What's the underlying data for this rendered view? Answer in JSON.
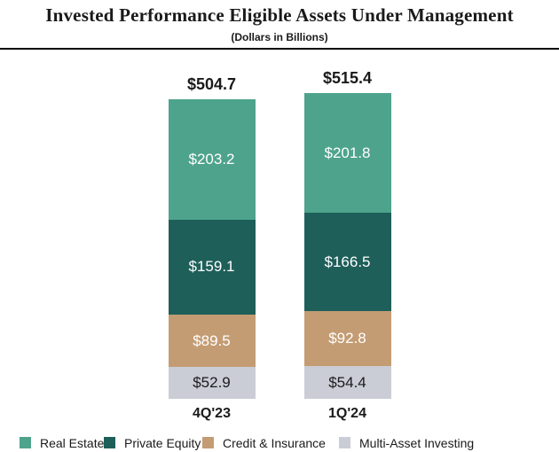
{
  "header": {
    "title": "Invested Performance Eligible Assets Under Management",
    "subtitle": "(Dollars in Billions)"
  },
  "chart_data": {
    "type": "bar",
    "variant": "stacked",
    "title": "Invested Performance Eligible Assets Under Management",
    "subtitle": "(Dollars in Billions)",
    "categories": [
      "4Q'23",
      "1Q'24"
    ],
    "totals": [
      504.7,
      515.4
    ],
    "value_prefix": "$",
    "series": [
      {
        "name": "Real Estate",
        "values": [
          203.2,
          201.8
        ],
        "color": "#4EA38C",
        "label_color": "#ffffff"
      },
      {
        "name": "Private Equity",
        "values": [
          159.1,
          166.5
        ],
        "color": "#1E5F5A",
        "label_color": "#ffffff"
      },
      {
        "name": "Credit & Insurance",
        "values": [
          89.5,
          92.8
        ],
        "color": "#C49C74",
        "label_color": "#ffffff"
      },
      {
        "name": "Multi-Asset Investing",
        "values": [
          52.9,
          54.4
        ],
        "color": "#CACDD6",
        "label_color": "#1a1a1a"
      }
    ],
    "stack_order_top_to_bottom": [
      "Real Estate",
      "Private Equity",
      "Credit & Insurance",
      "Multi-Asset Investing"
    ],
    "legend_position": "bottom",
    "grid": false,
    "axis_lines": "none",
    "colors": {
      "title_text": "#1a1a1a",
      "divider": "#000000"
    }
  }
}
